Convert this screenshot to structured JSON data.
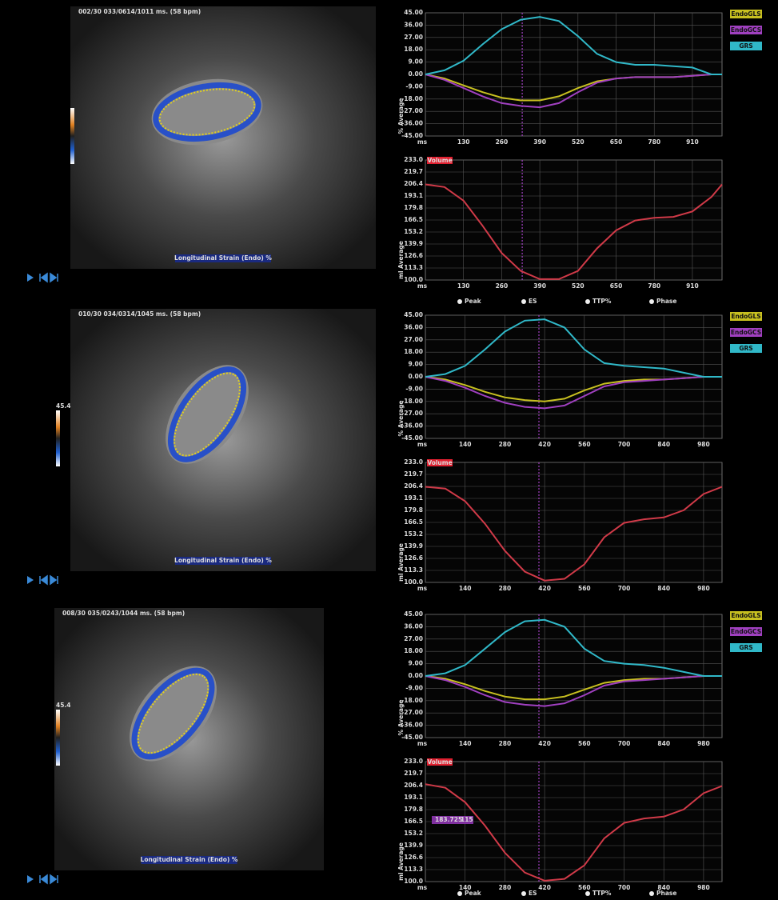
{
  "x_unit": "ms",
  "caption": "Longitudinal Strain (Endo) %",
  "markers_legend": [
    "Peak",
    "ES",
    "TTP%",
    "Phase"
  ],
  "strain_axis": {
    "label": "% Average",
    "ylim": [
      -45,
      45
    ],
    "yticks": [
      {
        "value": 45,
        "label": "45.00"
      },
      {
        "value": 36,
        "label": "36.00"
      },
      {
        "value": 27,
        "label": "27.00"
      },
      {
        "value": 18,
        "label": "18.00"
      },
      {
        "value": 9,
        "label": "9.00"
      },
      {
        "value": 0,
        "label": "0.00"
      },
      {
        "value": -9,
        "label": "-9.00"
      },
      {
        "value": -18,
        "label": "-18.00"
      },
      {
        "value": -27,
        "label": "-27.00"
      },
      {
        "value": -36,
        "label": "-36.00"
      },
      {
        "value": -45,
        "label": "-45.00"
      }
    ]
  },
  "volume_axis": {
    "label": "ml Average",
    "ylim": [
      100,
      233
    ],
    "yticks": [
      {
        "value": 233,
        "label": "233.0"
      },
      219.7,
      206.4,
      193.1,
      179.8,
      166.5,
      153.2,
      139.9,
      126.6,
      113.3,
      {
        "value": 100,
        "label": "100.0"
      }
    ]
  },
  "panels": [
    {
      "header": "002/30 033/0614/1011 ms. (58 bpm)",
      "show_markers_legend": true,
      "xlim": [
        0,
        1011
      ],
      "xticks": [
        130,
        260,
        390,
        520,
        650,
        780,
        910
      ],
      "es_time": 330,
      "x": [
        0,
        65,
        130,
        195,
        260,
        325,
        390,
        455,
        520,
        585,
        650,
        715,
        780,
        845,
        910,
        975,
        1011
      ],
      "series": [
        {
          "name": "EndoGLS",
          "color": "#c8c020",
          "values": [
            0,
            -3,
            -8,
            -13,
            -17,
            -19,
            -19,
            -16,
            -10,
            -5,
            -3,
            -2,
            -2,
            -2,
            -1,
            0,
            0
          ]
        },
        {
          "name": "EndoGCS",
          "color": "#a040c0",
          "values": [
            0,
            -4,
            -10,
            -16,
            -21,
            -23,
            -24,
            -21,
            -13,
            -6,
            -3,
            -2,
            -2,
            -2,
            -1,
            0,
            0
          ]
        },
        {
          "name": "GRS",
          "color": "#30b8c8",
          "values": [
            0,
            3,
            10,
            22,
            33,
            40,
            42,
            39,
            28,
            15,
            9,
            7,
            7,
            6,
            5,
            0,
            0
          ]
        }
      ],
      "volume": {
        "name": "Volume",
        "color": "#d03a48",
        "values": [
          206,
          203,
          188,
          160,
          130,
          110,
          101,
          101,
          110,
          135,
          155,
          166,
          169,
          170,
          176,
          192,
          206
        ]
      }
    },
    {
      "header": "010/30 034/0314/1045 ms. (58 bpm)",
      "colorbar_label": "45.4",
      "xlim": [
        0,
        1045
      ],
      "xticks": [
        140,
        280,
        420,
        560,
        700,
        840,
        980
      ],
      "es_time": 400,
      "x": [
        0,
        70,
        140,
        210,
        280,
        350,
        420,
        490,
        560,
        630,
        700,
        770,
        840,
        910,
        980,
        1045
      ],
      "series": [
        {
          "name": "EndoGLS",
          "color": "#c8c020",
          "values": [
            0,
            -2,
            -6,
            -11,
            -15,
            -17,
            -18,
            -16,
            -10,
            -5,
            -3,
            -2,
            -2,
            -1,
            0,
            0
          ]
        },
        {
          "name": "EndoGCS",
          "color": "#a040c0",
          "values": [
            0,
            -3,
            -8,
            -14,
            -19,
            -22,
            -23,
            -21,
            -14,
            -7,
            -4,
            -3,
            -2,
            -1,
            0,
            0
          ]
        },
        {
          "name": "GRS",
          "color": "#30b8c8",
          "values": [
            0,
            2,
            8,
            20,
            33,
            41,
            42,
            36,
            20,
            10,
            8,
            7,
            6,
            3,
            0,
            0
          ]
        }
      ],
      "volume": {
        "name": "Volume",
        "color": "#d03a48",
        "values": [
          206,
          204,
          190,
          165,
          135,
          112,
          102,
          104,
          120,
          150,
          166,
          170,
          172,
          180,
          198,
          206
        ]
      }
    },
    {
      "header": "008/30 035/0243/1044 ms. (58 bpm)",
      "colorbar_label": "45.4",
      "show_markers_legend": true,
      "tooltip": [
        "183.725",
        "115"
      ],
      "xlim": [
        0,
        1045
      ],
      "xticks": [
        140,
        280,
        420,
        560,
        700,
        840,
        980
      ],
      "es_time": 400,
      "x": [
        0,
        70,
        140,
        210,
        280,
        350,
        420,
        490,
        560,
        630,
        700,
        770,
        840,
        910,
        980,
        1045
      ],
      "series": [
        {
          "name": "EndoGLS",
          "color": "#c8c020",
          "values": [
            0,
            -2,
            -6,
            -11,
            -15,
            -17,
            -17,
            -15,
            -10,
            -5,
            -3,
            -2,
            -2,
            -1,
            0,
            0
          ]
        },
        {
          "name": "EndoGCS",
          "color": "#a040c0",
          "values": [
            0,
            -3,
            -8,
            -14,
            -19,
            -21,
            -22,
            -20,
            -14,
            -7,
            -4,
            -3,
            -2,
            -1,
            0,
            0
          ]
        },
        {
          "name": "GRS",
          "color": "#30b8c8",
          "values": [
            0,
            2,
            8,
            20,
            32,
            40,
            41,
            36,
            20,
            11,
            9,
            8,
            6,
            3,
            0,
            0
          ]
        }
      ],
      "volume": {
        "name": "Volume",
        "color": "#d03a48",
        "values": [
          208,
          204,
          188,
          162,
          132,
          110,
          101,
          103,
          118,
          148,
          165,
          170,
          172,
          180,
          198,
          206
        ]
      }
    }
  ]
}
